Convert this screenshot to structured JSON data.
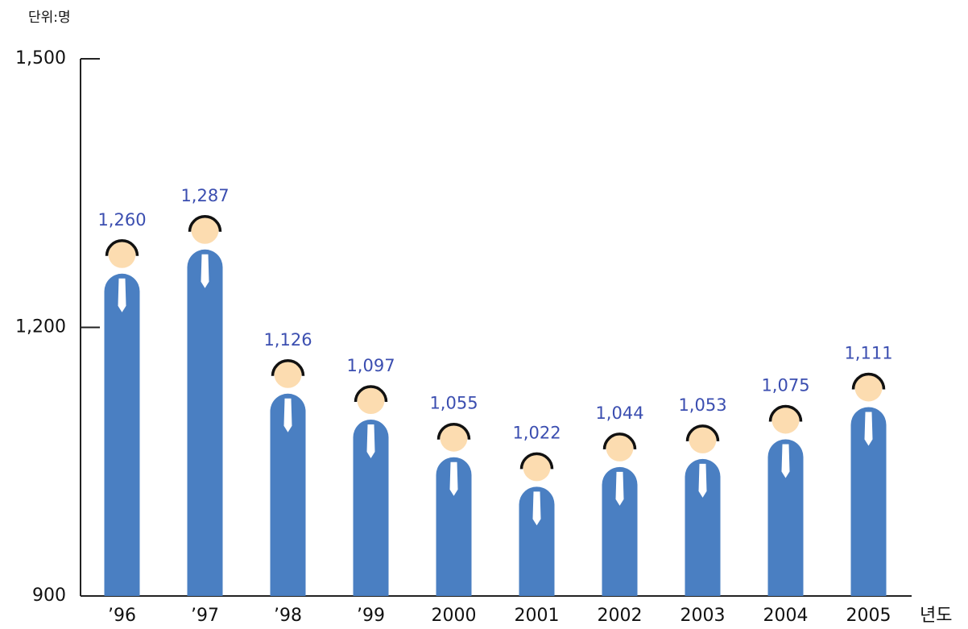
{
  "chart_data": {
    "type": "bar",
    "unit_label": "단위:명",
    "x_label": "년도",
    "categories": [
      "’96",
      "’97",
      "’98",
      "’99",
      "2000",
      "2001",
      "2002",
      "2003",
      "2004",
      "2005"
    ],
    "values": [
      1260,
      1287,
      1126,
      1097,
      1055,
      1022,
      1044,
      1053,
      1075,
      1111
    ],
    "value_labels": [
      "1,260",
      "1,287",
      "1,126",
      "1,097",
      "1,055",
      "1,022",
      "1,044",
      "1,053",
      "1,075",
      "1,111"
    ],
    "color": "#4a7fc2",
    "ylim": [
      900,
      1500
    ],
    "yticks": [
      900,
      {
        "value": 1200,
        "label": "1,200"
      },
      {
        "value": 1500,
        "label": "1,500"
      }
    ],
    "grid": false
  }
}
